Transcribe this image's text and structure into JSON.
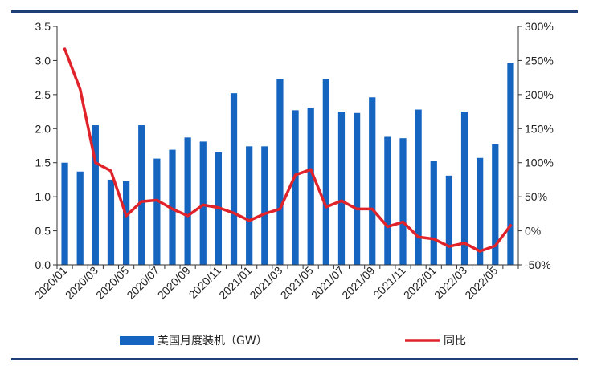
{
  "chart_data": {
    "type": "bar+line",
    "title": "",
    "categories": [
      "2020/01",
      "2020/02",
      "2020/03",
      "2020/04",
      "2020/05",
      "2020/06",
      "2020/07",
      "2020/08",
      "2020/09",
      "2020/10",
      "2020/11",
      "2020/12",
      "2021/01",
      "2021/02",
      "2021/03",
      "2021/04",
      "2021/05",
      "2021/06",
      "2021/07",
      "2021/08",
      "2021/09",
      "2021/10",
      "2021/11",
      "2021/12",
      "2022/01",
      "2022/02",
      "2022/03",
      "2022/04",
      "2022/05",
      "2022/06"
    ],
    "x_tick_labels": [
      "2020/01",
      "2020/03",
      "2020/05",
      "2020/07",
      "2020/09",
      "2020/11",
      "2021/01",
      "2021/03",
      "2021/05",
      "2021/07",
      "2021/09",
      "2021/11",
      "2022/01",
      "2022/03",
      "2022/05"
    ],
    "left_axis": {
      "ylim": [
        0,
        3.5
      ],
      "ticks": [
        "0.0",
        "0.5",
        "1.0",
        "1.5",
        "2.0",
        "2.5",
        "3.0",
        "3.5"
      ]
    },
    "right_axis": {
      "ylim": [
        -50,
        300
      ],
      "ticks": [
        "-50%",
        "0%",
        "50%",
        "100%",
        "150%",
        "200%",
        "250%",
        "300%"
      ]
    },
    "grid": false,
    "legend_position": "bottom",
    "series": [
      {
        "name": "美国月度装机（GW）",
        "type": "bar",
        "axis": "left",
        "color": "#1565c0",
        "values": [
          1.5,
          1.37,
          2.05,
          1.25,
          1.23,
          2.05,
          1.56,
          1.69,
          1.87,
          1.81,
          1.65,
          2.52,
          1.74,
          1.74,
          2.73,
          2.27,
          2.31,
          2.73,
          2.25,
          2.23,
          2.46,
          1.88,
          1.86,
          2.28,
          1.53,
          1.31,
          2.25,
          1.57,
          1.77,
          2.96
        ]
      },
      {
        "name": "同比",
        "type": "line",
        "axis": "right",
        "color": "#e0232a",
        "values": [
          267,
          208,
          100,
          88,
          22,
          43,
          45,
          32,
          22,
          38,
          34,
          26,
          15,
          25,
          32,
          82,
          90,
          35,
          44,
          32,
          32,
          6,
          13,
          -9,
          -12,
          -23,
          -18,
          -30,
          -22,
          8
        ]
      }
    ]
  }
}
